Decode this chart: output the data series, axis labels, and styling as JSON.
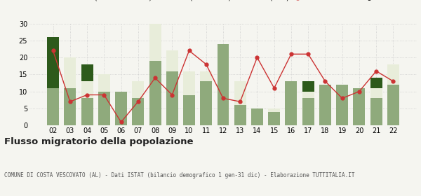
{
  "years": [
    "02",
    "03",
    "04",
    "05",
    "06",
    "07",
    "08",
    "09",
    "10",
    "11",
    "12",
    "13",
    "14",
    "15",
    "16",
    "17",
    "18",
    "19",
    "20",
    "21",
    "22"
  ],
  "iscritti_altri_comuni": [
    11,
    11,
    8,
    10,
    10,
    8,
    19,
    16,
    9,
    13,
    24,
    6,
    5,
    4,
    13,
    8,
    12,
    12,
    11,
    8,
    12
  ],
  "iscritti_estero": [
    0,
    9,
    5,
    5,
    0,
    5,
    11,
    6,
    7,
    3,
    0,
    7,
    0,
    1,
    0,
    2,
    0,
    0,
    0,
    3,
    6
  ],
  "iscritti_altri": [
    15,
    0,
    5,
    0,
    0,
    0,
    0,
    0,
    0,
    0,
    0,
    0,
    0,
    0,
    0,
    3,
    0,
    0,
    0,
    3,
    0
  ],
  "cancellati": [
    22,
    7,
    9,
    9,
    1,
    7,
    14,
    9,
    22,
    18,
    8,
    7,
    20,
    11,
    21,
    21,
    13,
    8,
    10,
    16,
    13
  ],
  "color_altri_comuni": "#8faa7c",
  "color_estero": "#e8edda",
  "color_altri": "#2d5a1b",
  "color_cancellati": "#cc3333",
  "title": "Flusso migratorio della popolazione",
  "subtitle": "COMUNE DI COSTA VESCOVATO (AL) - Dati ISTAT (bilancio demografico 1 gen-31 dic) - Elaborazione TUTTITALIA.IT",
  "ylim": [
    0,
    30
  ],
  "yticks": [
    0,
    5,
    10,
    15,
    20,
    25,
    30
  ],
  "bg_color": "#f5f5f0"
}
